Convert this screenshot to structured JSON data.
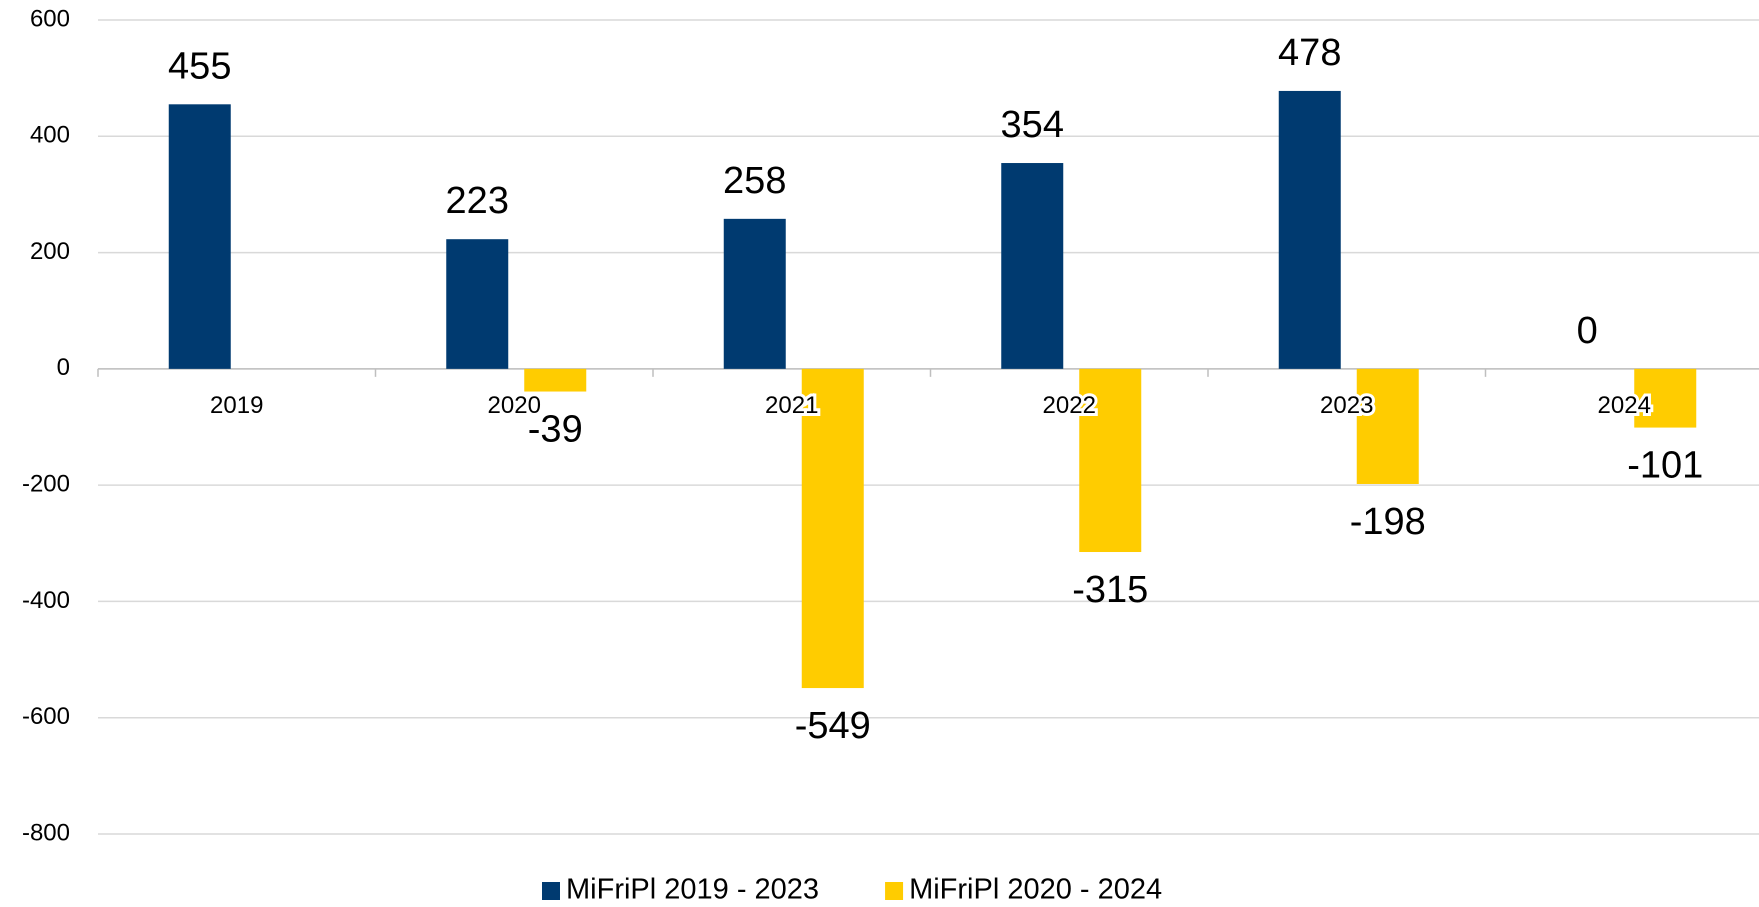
{
  "chart_data": {
    "type": "bar",
    "categories": [
      "2019",
      "2020",
      "2021",
      "2022",
      "2023",
      "2024"
    ],
    "series": [
      {
        "name": "MiFriPl 2019 - 2023",
        "color": "#003a70",
        "values": [
          455,
          223,
          258,
          354,
          478,
          0
        ]
      },
      {
        "name": "MiFriPl 2020 - 2024",
        "color": "#ffcc00",
        "values": [
          null,
          -39,
          -549,
          -315,
          -198,
          -101
        ]
      }
    ],
    "ylim": [
      -800,
      600
    ],
    "yticks": [
      -800,
      -600,
      -400,
      -200,
      0,
      200,
      400,
      600
    ],
    "grid": true,
    "legend": "bottom"
  }
}
